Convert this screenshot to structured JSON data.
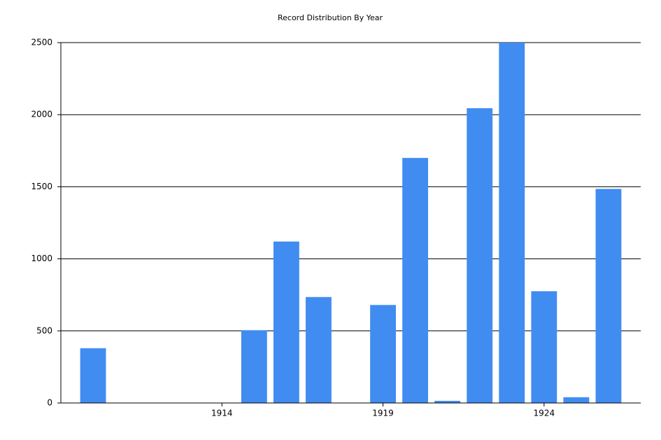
{
  "chart_data": {
    "type": "bar",
    "title": "Record Distribution By Year",
    "x": [
      1910,
      1915,
      1916,
      1917,
      1919,
      1920,
      1921,
      1922,
      1923,
      1924,
      1925,
      1926
    ],
    "values": [
      380,
      505,
      1120,
      735,
      680,
      1700,
      15,
      2045,
      2500,
      775,
      40,
      1485
    ],
    "color": "#418cf0",
    "xlim": [
      1909,
      1927
    ],
    "xticks": [
      1914,
      1919,
      1924
    ],
    "ylim": [
      0,
      2500
    ],
    "yticks": [
      0,
      500,
      1000,
      1500,
      2000,
      2500
    ],
    "grid": true
  }
}
